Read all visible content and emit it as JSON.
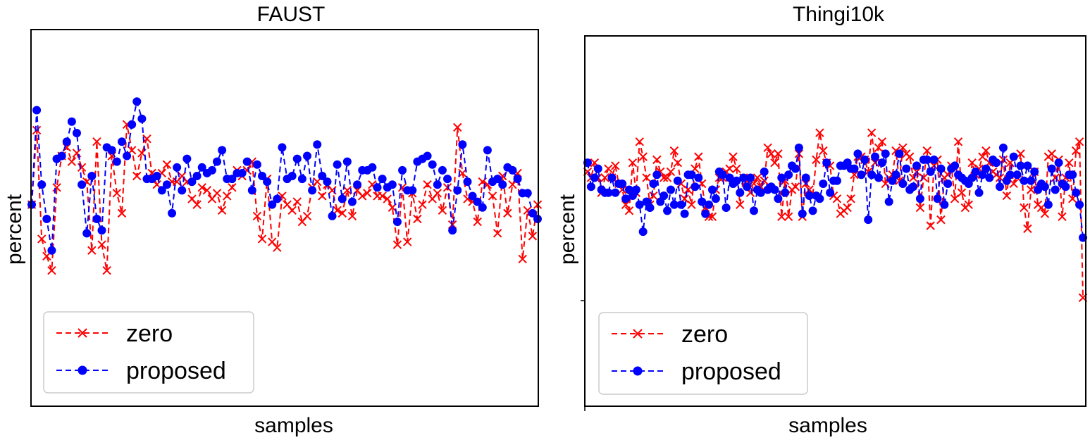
{
  "chart_data": [
    {
      "type": "line",
      "title": "FAUST",
      "xlabel": "samples",
      "ylabel": "percent",
      "ylim": [
        0,
        100
      ],
      "grid": false,
      "legend_position": "bottom-left",
      "series": [
        {
          "name": "zero",
          "color": "#ff0000",
          "marker": "x",
          "style": "dashed",
          "values": [
            52,
            78,
            40,
            34,
            29,
            58,
            69,
            72,
            67,
            70,
            65,
            60,
            36,
            74,
            38,
            29,
            69,
            56,
            49,
            80,
            71,
            62,
            70,
            75,
            63,
            59,
            63,
            66,
            60,
            60,
            62,
            60,
            54,
            52,
            58,
            57,
            54,
            56,
            50,
            55,
            58,
            64,
            62,
            64,
            67,
            48,
            40,
            61,
            39,
            37,
            55,
            52,
            50,
            53,
            46,
            48,
            58,
            60,
            55,
            59,
            57,
            50,
            49,
            57,
            48,
            57,
            55,
            56,
            59,
            55,
            55,
            54,
            51,
            38,
            58,
            39,
            56,
            47,
            52,
            59,
            54,
            56,
            50,
            58,
            45,
            79,
            63,
            54,
            53,
            46,
            60,
            59,
            55,
            42,
            62,
            49,
            59,
            63,
            33,
            50,
            41,
            52
          ]
        },
        {
          "name": "proposed",
          "color": "#0000ff",
          "marker": "o",
          "style": "dashed",
          "values": [
            52,
            85,
            59,
            47,
            36,
            68,
            69,
            74,
            81,
            77,
            59,
            42,
            62,
            47,
            43,
            72,
            71,
            67,
            74,
            69,
            80,
            88,
            82,
            61,
            61,
            62,
            57,
            59,
            49,
            65,
            57,
            68,
            60,
            62,
            65,
            63,
            64,
            67,
            71,
            61,
            61,
            63,
            63,
            67,
            57,
            66,
            62,
            60,
            52,
            54,
            72,
            61,
            62,
            68,
            61,
            69,
            57,
            73,
            62,
            60,
            48,
            66,
            54,
            67,
            53,
            59,
            64,
            64,
            65,
            58,
            61,
            58,
            59,
            46,
            64,
            57,
            57,
            67,
            68,
            69,
            66,
            59,
            64,
            61,
            43,
            57,
            73,
            60,
            55,
            53,
            51,
            71,
            60,
            61,
            59,
            65,
            64,
            61,
            56,
            56,
            49,
            47
          ]
        }
      ]
    },
    {
      "type": "line",
      "title": "Thingi10k",
      "xlabel": "samples",
      "ylabel": "percent",
      "ylim": [
        0,
        100
      ],
      "grid": false,
      "legend_position": "bottom-left",
      "series": [
        {
          "name": "zero",
          "color": "#ff0000",
          "marker": "x",
          "style": "dashed",
          "values": [
            72,
            70,
            75,
            70,
            65,
            70,
            73,
            70,
            74,
            68,
            66,
            61,
            59,
            75,
            65,
            82,
            77,
            70,
            61,
            64,
            76,
            72,
            70,
            70,
            72,
            79,
            75,
            68,
            63,
            66,
            61,
            73,
            77,
            68,
            60,
            57,
            57,
            66,
            70,
            70,
            72,
            73,
            77,
            73,
            61,
            70,
            69,
            65,
            68,
            70,
            67,
            69,
            80,
            78,
            75,
            78,
            57,
            69,
            57,
            66,
            67,
            78,
            57,
            68,
            66,
            64,
            76,
            85,
            79,
            75,
            74,
            64,
            63,
            58,
            59,
            60,
            63,
            71,
            77,
            77,
            76,
            72,
            85,
            75,
            80,
            82,
            68,
            70,
            71,
            79,
            69,
            80,
            78,
            77,
            70,
            72,
            60,
            70,
            79,
            54,
            74,
            76,
            56,
            70,
            71,
            74,
            63,
            82,
            65,
            60,
            61,
            75,
            71,
            73,
            77,
            79,
            75,
            72,
            71,
            70,
            76,
            64,
            75,
            68,
            70,
            78,
            60,
            53,
            66,
            72,
            61,
            60,
            58,
            77,
            78,
            70,
            76,
            57,
            70,
            75,
            63,
            79,
            82,
            30
          ]
        },
        {
          "name": "proposed",
          "color": "#0000ff",
          "marker": "o",
          "style": "dashed",
          "values": [
            75,
            67,
            70,
            73,
            66,
            65,
            65,
            70,
            65,
            68,
            68,
            63,
            66,
            64,
            66,
            61,
            52,
            62,
            60,
            68,
            71,
            62,
            64,
            59,
            66,
            61,
            69,
            61,
            58,
            71,
            71,
            67,
            70,
            62,
            58,
            61,
            66,
            63,
            72,
            71,
            60,
            70,
            68,
            69,
            65,
            70,
            67,
            70,
            59,
            66,
            65,
            72,
            66,
            67,
            66,
            63,
            70,
            65,
            71,
            74,
            73,
            80,
            58,
            70,
            64,
            59,
            64,
            63,
            68,
            75,
            65,
            69,
            69,
            74,
            74,
            75,
            73,
            73,
            78,
            71,
            76,
            56,
            71,
            77,
            70,
            75,
            78,
            62,
            69,
            71,
            78,
            68,
            73,
            66,
            67,
            74,
            63,
            76,
            76,
            72,
            76,
            63,
            73,
            61,
            68,
            73,
            74,
            71,
            70,
            69,
            68,
            70,
            72,
            65,
            71,
            73,
            70,
            76,
            75,
            67,
            80,
            69,
            71,
            77,
            71,
            74,
            69,
            74,
            69,
            72,
            66,
            68,
            67,
            61,
            73,
            66,
            75,
            68,
            67,
            71,
            71,
            65,
            61,
            50
          ]
        }
      ]
    }
  ]
}
